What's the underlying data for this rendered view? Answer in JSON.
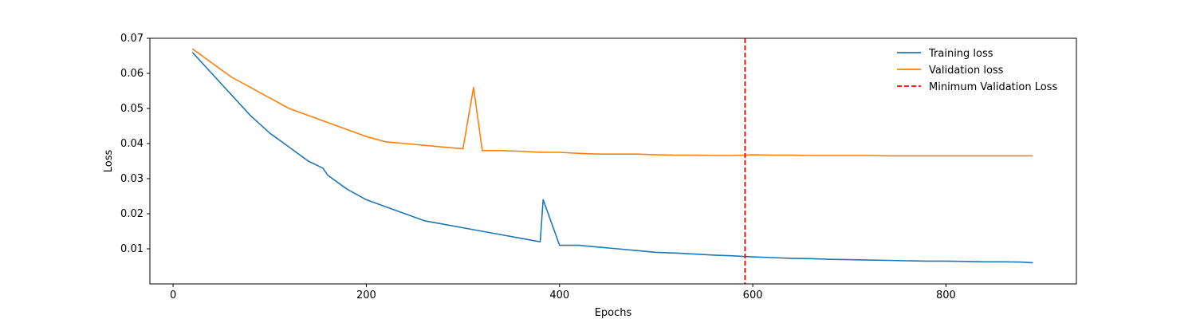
{
  "chart_data": {
    "type": "line",
    "title": "",
    "xlabel": "Epochs",
    "ylabel": "Loss",
    "xlim": [
      -24,
      935
    ],
    "ylim": [
      0.0,
      0.07
    ],
    "x_ticks": [
      0,
      200,
      400,
      600,
      800
    ],
    "x_tick_labels": [
      "0",
      "200",
      "400",
      "600",
      "800"
    ],
    "y_ticks": [
      0.01,
      0.02,
      0.03,
      0.04,
      0.05,
      0.06,
      0.07
    ],
    "y_tick_labels": [
      "0.01",
      "0.02",
      "0.03",
      "0.04",
      "0.05",
      "0.06",
      "0.07"
    ],
    "grid": false,
    "legend_position": "top-right",
    "series": [
      {
        "name": "Training loss",
        "color": "#1f77b4",
        "style": "solid",
        "x": [
          20,
          40,
          60,
          80,
          100,
          120,
          140,
          155,
          160,
          180,
          200,
          220,
          240,
          260,
          280,
          300,
          320,
          340,
          360,
          380,
          383,
          400,
          420,
          440,
          460,
          480,
          500,
          520,
          540,
          560,
          580,
          592,
          600,
          620,
          640,
          660,
          680,
          700,
          720,
          740,
          760,
          780,
          800,
          820,
          840,
          860,
          880,
          890
        ],
        "y": [
          0.066,
          0.06,
          0.054,
          0.048,
          0.043,
          0.039,
          0.035,
          0.033,
          0.031,
          0.027,
          0.024,
          0.022,
          0.02,
          0.018,
          0.017,
          0.016,
          0.015,
          0.014,
          0.013,
          0.012,
          0.024,
          0.011,
          0.011,
          0.0105,
          0.01,
          0.0095,
          0.009,
          0.0088,
          0.0085,
          0.0082,
          0.008,
          0.0078,
          0.0077,
          0.0075,
          0.0073,
          0.0072,
          0.007,
          0.0069,
          0.0068,
          0.0067,
          0.0066,
          0.0065,
          0.0065,
          0.0064,
          0.0063,
          0.0063,
          0.0062,
          0.006
        ]
      },
      {
        "name": "Validation loss",
        "color": "#ff7f0e",
        "style": "solid",
        "x": [
          20,
          40,
          60,
          80,
          100,
          120,
          140,
          160,
          180,
          200,
          220,
          240,
          260,
          280,
          300,
          311,
          320,
          340,
          360,
          380,
          400,
          420,
          440,
          460,
          480,
          500,
          520,
          540,
          560,
          580,
          600,
          620,
          640,
          660,
          680,
          700,
          720,
          740,
          760,
          780,
          800,
          820,
          840,
          860,
          880,
          890
        ],
        "y": [
          0.067,
          0.063,
          0.059,
          0.056,
          0.053,
          0.05,
          0.048,
          0.046,
          0.044,
          0.042,
          0.0405,
          0.04,
          0.0395,
          0.039,
          0.0385,
          0.056,
          0.038,
          0.038,
          0.0378,
          0.0375,
          0.0375,
          0.0372,
          0.037,
          0.037,
          0.037,
          0.0368,
          0.0367,
          0.0367,
          0.0366,
          0.0366,
          0.0368,
          0.0367,
          0.0367,
          0.0366,
          0.0366,
          0.0366,
          0.0366,
          0.0365,
          0.0365,
          0.0365,
          0.0365,
          0.0365,
          0.0365,
          0.0365,
          0.0365,
          0.0365
        ]
      },
      {
        "name": "Minimum Validation Loss",
        "color": "#ff0000",
        "style": "dashed",
        "vertical_line_x": 592
      }
    ]
  }
}
